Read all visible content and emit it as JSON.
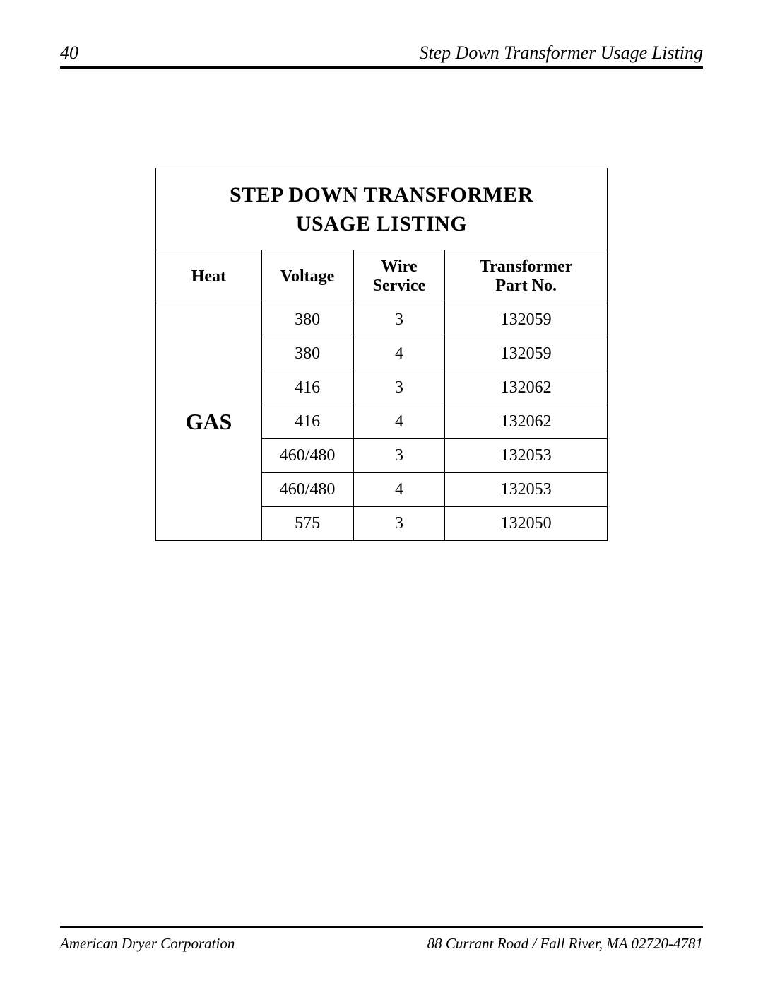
{
  "header": {
    "page_number": "40",
    "title": "Step Down Transformer Usage Listing"
  },
  "table": {
    "title_line1": "STEP DOWN TRANSFORMER",
    "title_line2": "USAGE LISTING",
    "columns": {
      "heat": "Heat",
      "voltage": "Voltage",
      "wire_line1": "Wire",
      "wire_line2": "Service",
      "part_line1": "Transformer",
      "part_line2": "Part No."
    },
    "heat_label": "GAS",
    "rows": [
      {
        "voltage": "380",
        "wire": "3",
        "part": "132059"
      },
      {
        "voltage": "380",
        "wire": "4",
        "part": "132059"
      },
      {
        "voltage": "416",
        "wire": "3",
        "part": "132062"
      },
      {
        "voltage": "416",
        "wire": "4",
        "part": "132062"
      },
      {
        "voltage": "460/480",
        "wire": "3",
        "part": "132053"
      },
      {
        "voltage": "460/480",
        "wire": "4",
        "part": "132053"
      },
      {
        "voltage": "575",
        "wire": "3",
        "part": "132050"
      }
    ]
  },
  "footer": {
    "company": "American Dryer Corporation",
    "address": "88 Currant Road / Fall River, MA 02720-4781"
  }
}
